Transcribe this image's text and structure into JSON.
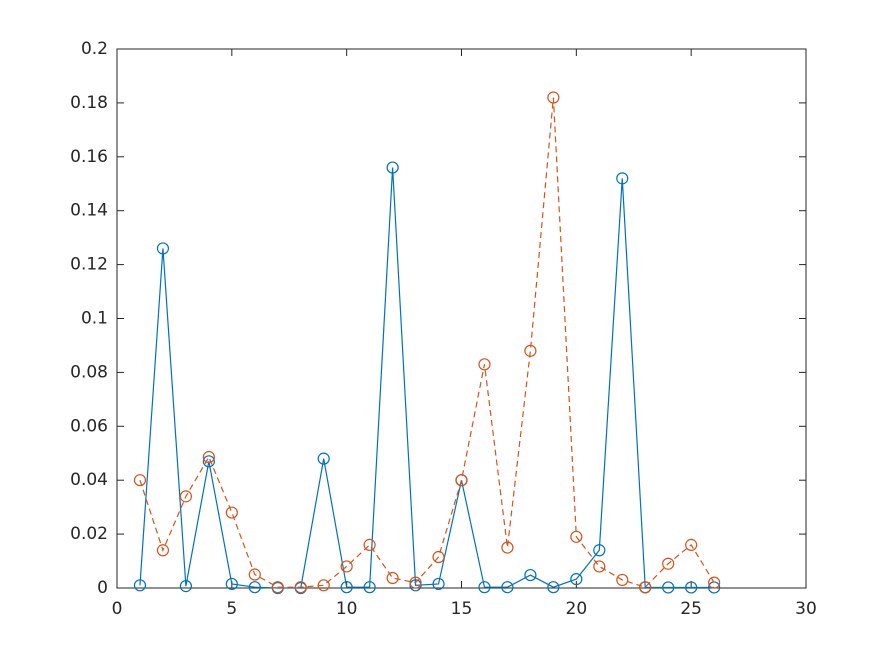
{
  "chart_data": {
    "type": "line",
    "x": [
      1,
      2,
      3,
      4,
      5,
      6,
      7,
      8,
      9,
      10,
      11,
      12,
      13,
      14,
      15,
      16,
      17,
      18,
      19,
      20,
      21,
      22,
      23,
      24,
      25,
      26
    ],
    "series": [
      {
        "color": "#0072bd",
        "line_style": "solid",
        "marker": "circle",
        "values": [
          0.001,
          0.126,
          0.0007,
          0.047,
          0.0015,
          0.0003,
          0,
          0,
          0.048,
          0.0003,
          0.0003,
          0.156,
          0.001,
          0.0015,
          0.04,
          0.0003,
          0.0003,
          0.0048,
          0.0003,
          0.0033,
          0.014,
          0.152,
          0.0002,
          0.0002,
          0.0002,
          0.0002
        ]
      },
      {
        "color": "#d95319",
        "line_style": "dashed",
        "marker": "circle",
        "values": [
          0.04,
          0.014,
          0.034,
          0.0486,
          0.028,
          0.005,
          0.0003,
          0.0003,
          0.001,
          0.008,
          0.016,
          0.0037,
          0.002,
          0.0115,
          0.04,
          0.083,
          0.015,
          0.088,
          0.182,
          0.019,
          0.008,
          0.003,
          0.0003,
          0.009,
          0.016,
          0.002
        ]
      }
    ],
    "xlim": [
      0,
      30
    ],
    "xticks": [
      0,
      5,
      10,
      15,
      20,
      25,
      30
    ],
    "ylim": [
      0,
      0.2
    ],
    "yticks": [
      0,
      0.02,
      0.04,
      0.06,
      0.08,
      0.1,
      0.12,
      0.14,
      0.16,
      0.18,
      0.2
    ],
    "grid": false,
    "box": true
  }
}
